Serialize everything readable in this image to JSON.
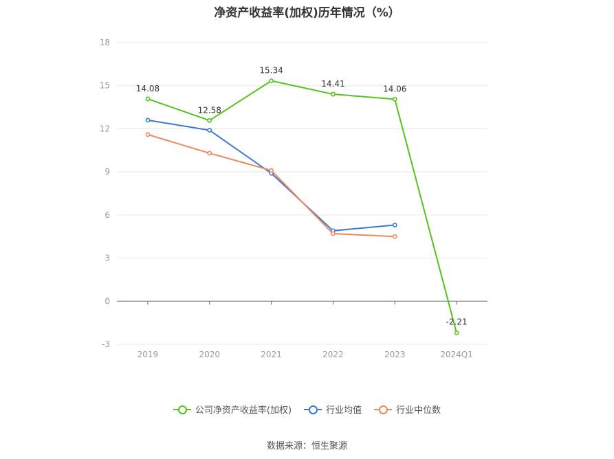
{
  "chart_data": {
    "type": "line",
    "title": "净资产收益率(加权)历年情况（%）",
    "categories": [
      "2019",
      "2020",
      "2021",
      "2022",
      "2023",
      "2024Q1"
    ],
    "y_ticks": [
      "18",
      "15",
      "12",
      "9",
      "6",
      "3",
      "0",
      "-3"
    ],
    "ylim": [
      -3,
      18
    ],
    "grid": true,
    "legend_position": "bottom",
    "series": [
      {
        "name": "公司净资产收益率(加权)",
        "color": "#52c41a",
        "values": [
          14.08,
          12.58,
          15.34,
          14.41,
          14.06,
          -2.21
        ],
        "labels": [
          "14.08",
          "12.58",
          "15.34",
          "14.41",
          "14.06",
          "-2.21"
        ]
      },
      {
        "name": "行业均值",
        "color": "#3a78d8",
        "values": [
          12.6,
          11.9,
          8.9,
          4.9,
          5.3,
          null
        ]
      },
      {
        "name": "行业中位数",
        "color": "#f0875a",
        "values": [
          11.6,
          10.3,
          9.1,
          4.7,
          4.5,
          null
        ]
      }
    ]
  },
  "source": "数据来源：恒生聚源"
}
